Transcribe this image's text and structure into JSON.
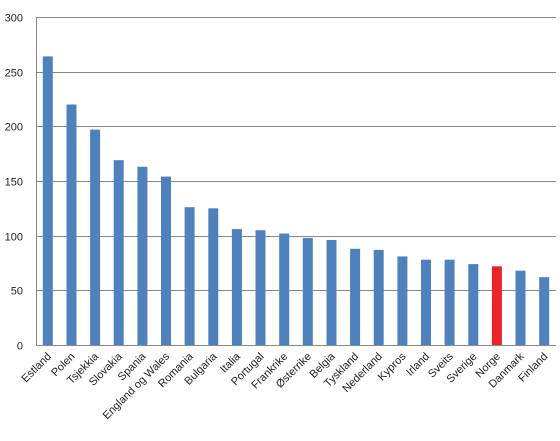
{
  "chart_data": {
    "type": "bar",
    "categories": [
      "Estland",
      "Polen",
      "Tsjekkia",
      "Slovakia",
      "Spania",
      "England og Wales",
      "Romania",
      "Bulgaria",
      "Italia",
      "Portugal",
      "Frankrike",
      "Østerrike",
      "Belgia",
      "Tyskland",
      "Nederland",
      "Kypros",
      "Irland",
      "Sveits",
      "Sverige",
      "Norge",
      "Danmark",
      "Finland"
    ],
    "values": [
      264,
      220,
      197,
      169,
      163,
      154,
      126,
      125,
      106,
      105,
      102,
      98,
      96,
      88,
      87,
      81,
      78,
      78,
      74,
      72,
      68,
      62
    ],
    "ylim": [
      0,
      300
    ],
    "yticks": [
      0,
      50,
      100,
      150,
      200,
      250,
      300
    ],
    "grid": true,
    "legend": "none",
    "colors": {
      "default": "#4F81BD",
      "highlight": "#E8262A",
      "highlight_category": "Norge",
      "gridline": "#888888"
    }
  }
}
